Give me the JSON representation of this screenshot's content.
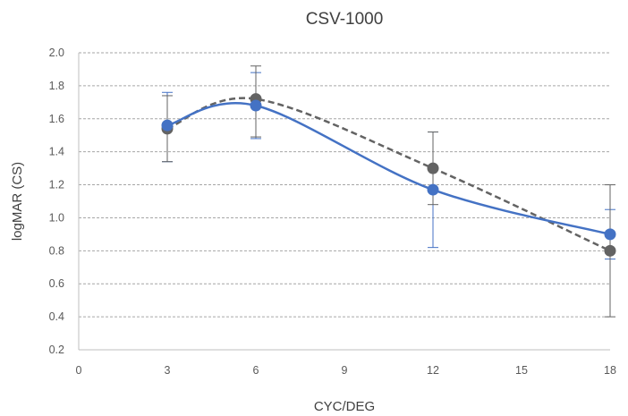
{
  "chart_data": {
    "type": "line",
    "title": "CSV-1000",
    "xlabel": "CYC/DEG",
    "ylabel": "logMAR (CS)",
    "xlim": [
      0,
      18
    ],
    "ylim": [
      0.2,
      2.0
    ],
    "xticks": [
      0,
      3,
      6,
      9,
      12,
      15,
      18
    ],
    "yticks": [
      "0.2",
      "0.4",
      "0.6",
      "0.8",
      "1.0",
      "1.2",
      "1.4",
      "1.6",
      "1.8",
      "2.0"
    ],
    "grid": "horizontal-dashed",
    "legend": "none",
    "x": [
      3,
      6,
      12,
      18
    ],
    "series": [
      {
        "color": "#4472c4",
        "line_style": "solid",
        "values": [
          1.56,
          1.68,
          1.17,
          0.9
        ],
        "error_low": [
          0.22,
          0.2,
          0.35,
          0.15
        ],
        "error_high": [
          0.2,
          0.2,
          0.35,
          0.15
        ]
      },
      {
        "color": "#636363",
        "line_style": "dashed",
        "values": [
          1.54,
          1.72,
          1.3,
          0.8
        ],
        "error_low": [
          0.2,
          0.23,
          0.22,
          0.4
        ],
        "error_high": [
          0.2,
          0.2,
          0.22,
          0.4
        ]
      }
    ]
  }
}
